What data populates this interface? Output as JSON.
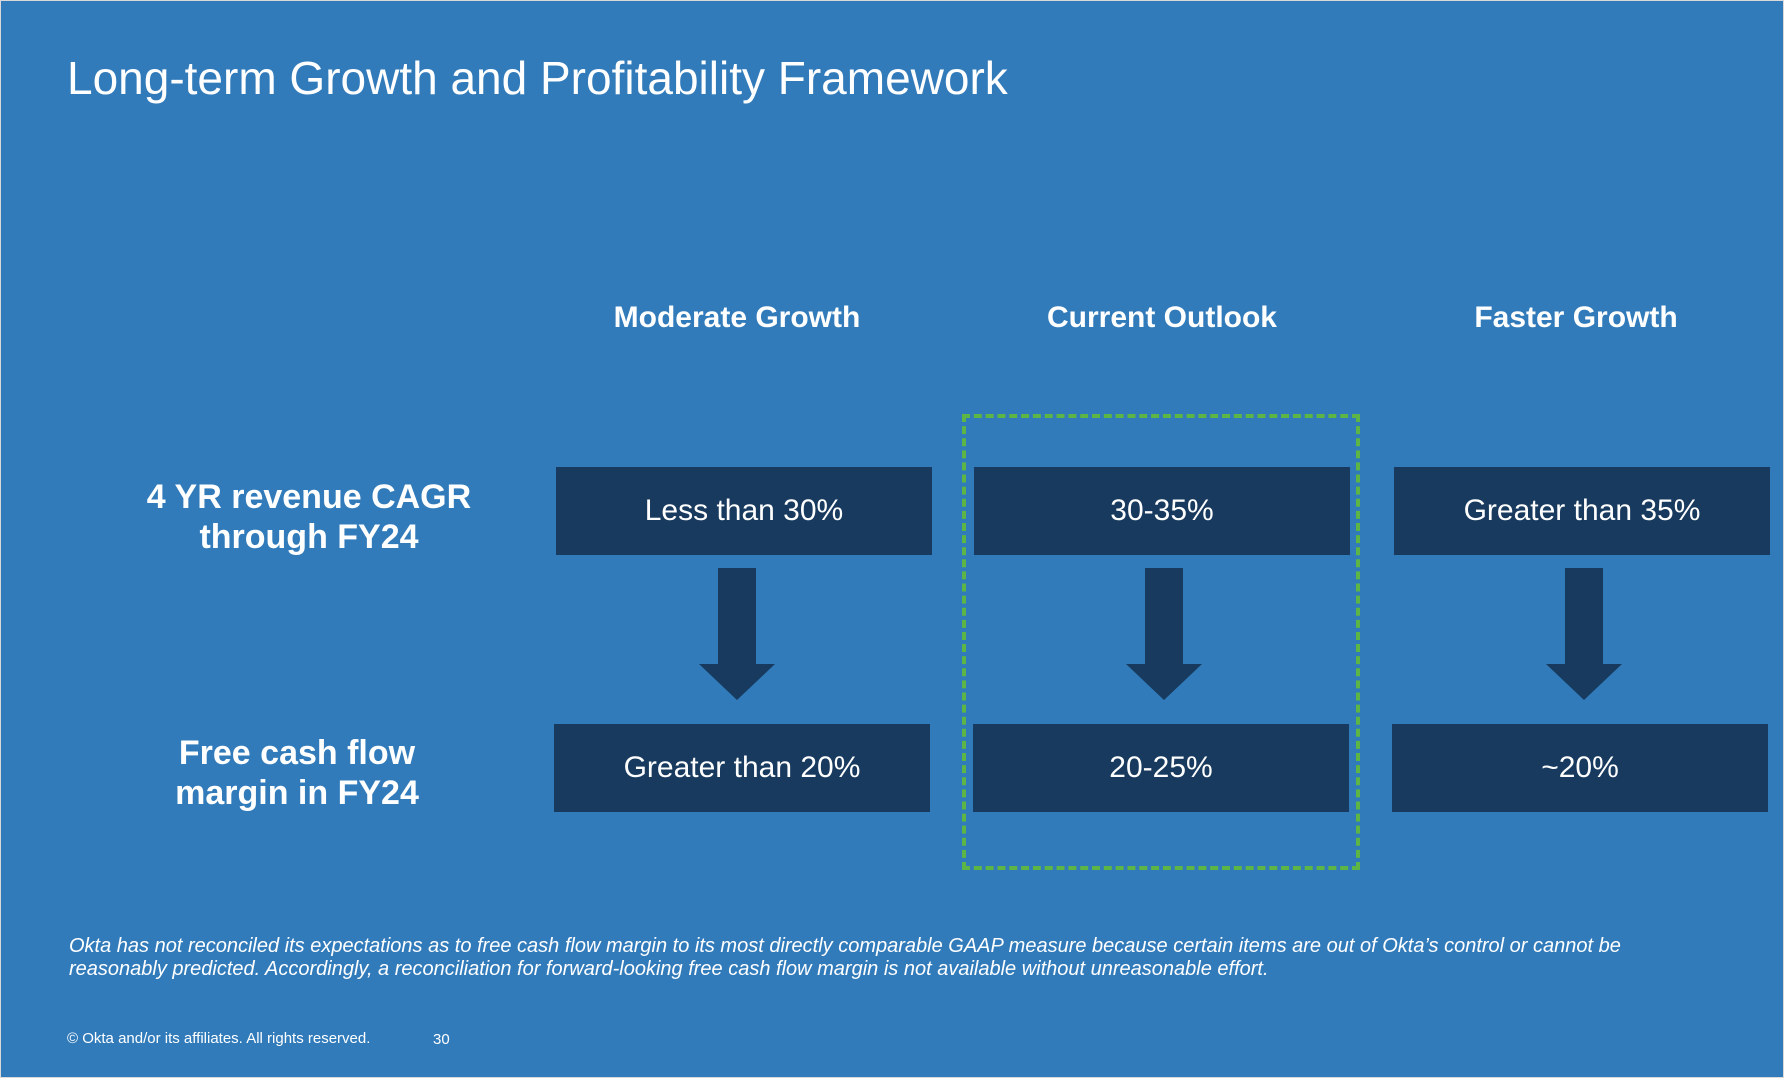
{
  "slide": {
    "title": "Long-term Growth and Profitability Framework",
    "columns": [
      {
        "heading": "Moderate Growth",
        "revenue_cagr": "Less than 30%",
        "fcf_margin": "Greater than 20%"
      },
      {
        "heading": "Current Outlook",
        "revenue_cagr": "30-35%",
        "fcf_margin": "20-25%",
        "highlighted": true
      },
      {
        "heading": "Faster Growth",
        "revenue_cagr": "Greater than 35%",
        "fcf_margin": "~20%"
      }
    ],
    "rows": [
      {
        "label_line1": "4 YR revenue CAGR",
        "label_line2": "through FY24"
      },
      {
        "label_line1": "Free cash flow",
        "label_line2": "margin in FY24"
      }
    ],
    "footnote": {
      "line1": "Okta has not reconciled its expectations as to free cash flow margin to its most directly comparable GAAP measure because certain items are out of Okta’s control or cannot be",
      "line2": "reasonably predicted. Accordingly, a reconciliation for forward-looking free cash flow margin is not available without unreasonable effort."
    },
    "copyright": "© Okta and/or its affiliates. All rights reserved.",
    "page_number": "30",
    "colors": {
      "background": "#317bbb",
      "box": "#173a5e",
      "highlight_border": "#5cb545",
      "text": "#ffffff"
    }
  }
}
